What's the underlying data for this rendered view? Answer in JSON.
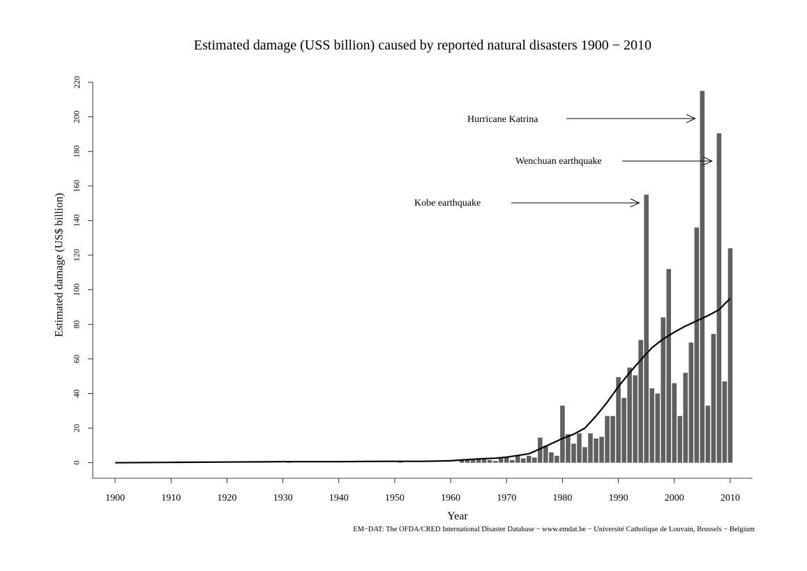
{
  "chart_data": {
    "type": "bar",
    "title": "Estimated damage (USS billion) caused by reported natural disasters 1900 − 2010",
    "xlabel": "Year",
    "ylabel": "Estimated damage (US$ billion)",
    "source": "EM−DAT: The OFDA/CRED International Disaster Database − www.emdat.be − Université Catholique de Louvain, Brussels − Belgium",
    "xlim": [
      1896,
      2014
    ],
    "ylim": [
      -9,
      220
    ],
    "xticks": [
      1900,
      1910,
      1920,
      1930,
      1940,
      1950,
      1960,
      1970,
      1980,
      1990,
      2000,
      2010
    ],
    "xtick_labels": [
      "1900",
      "1910",
      "1920",
      "1930",
      "1940",
      "1950",
      "1960",
      "1970",
      "1980",
      "1990",
      "2000",
      "2010"
    ],
    "yticks": [
      0,
      20,
      40,
      60,
      80,
      100,
      120,
      140,
      160,
      180,
      200,
      220
    ],
    "ytick_labels": [
      "0",
      "20",
      "40",
      "60",
      "80",
      "100",
      "120",
      "140",
      "160",
      "180",
      "200",
      "220"
    ],
    "grid": false,
    "bar_color": "#5f5f5f",
    "line_color": "#000000",
    "bars": {
      "x": [
        1931,
        1951,
        1962,
        1963,
        1964,
        1965,
        1966,
        1967,
        1968,
        1969,
        1970,
        1971,
        1972,
        1973,
        1974,
        1975,
        1976,
        1977,
        1978,
        1979,
        1980,
        1981,
        1982,
        1983,
        1984,
        1985,
        1986,
        1987,
        1988,
        1989,
        1990,
        1991,
        1992,
        1993,
        1994,
        1995,
        1996,
        1997,
        1998,
        1999,
        2000,
        2001,
        2002,
        2003,
        2004,
        2005,
        2006,
        2007,
        2008,
        2009,
        2010
      ],
      "values": [
        1,
        1,
        1.5,
        1.5,
        2,
        2,
        2,
        1.5,
        1,
        2.5,
        3,
        1.5,
        4,
        2.5,
        4,
        3,
        14.5,
        10,
        6,
        4,
        33,
        16.5,
        11,
        17,
        9,
        17,
        14,
        15,
        27,
        27,
        49.5,
        37.5,
        55,
        50.5,
        71,
        155,
        43,
        40,
        84,
        112,
        46,
        27,
        52,
        69.5,
        136,
        215,
        33,
        74.5,
        190.5,
        47,
        124
      ]
    },
    "series": [
      {
        "type": "line",
        "x": [
          1900,
          1910,
          1920,
          1930,
          1940,
          1945,
          1950,
          1955,
          1960,
          1962,
          1965,
          1968,
          1970,
          1972,
          1974,
          1976,
          1978,
          1980,
          1982,
          1984,
          1986,
          1988,
          1990,
          1992,
          1994,
          1996,
          1998,
          2000,
          2002,
          2004,
          2006,
          2008,
          2010
        ],
        "values": [
          0,
          0.2,
          0.4,
          0.6,
          0.6,
          0.7,
          0.8,
          0.8,
          1.1,
          1.6,
          2.2,
          2.6,
          3.2,
          4.2,
          5.2,
          8.0,
          11.0,
          14.0,
          16.5,
          20.0,
          27.0,
          35.0,
          44.0,
          52.0,
          59.5,
          66.5,
          71.5,
          75.5,
          79.0,
          82.0,
          85.0,
          88.5,
          95.0
        ]
      }
    ],
    "annotations": [
      {
        "text": "Hurricane Katrina",
        "arrow_to_x": 2005
      },
      {
        "text": "Wenchuan earthquake",
        "arrow_to_x": 2008
      },
      {
        "text": "Kobe earthquake",
        "arrow_to_x": 1995
      }
    ]
  }
}
